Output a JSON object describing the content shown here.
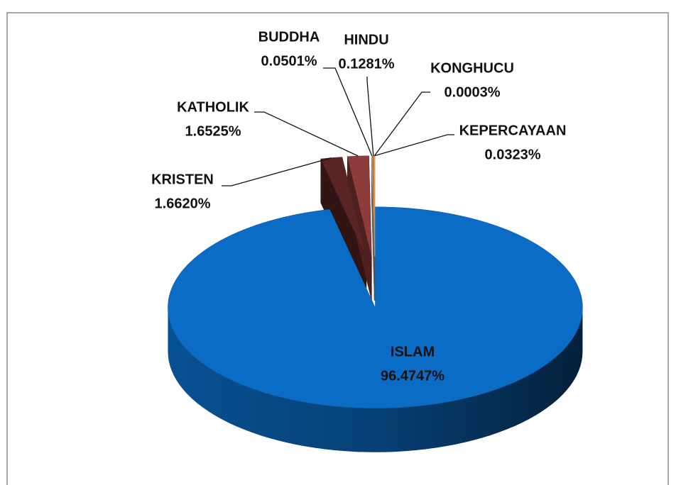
{
  "chart_data": {
    "type": "pie3d",
    "categories": [
      "ISLAM",
      "KRISTEN",
      "KATHOLIK",
      "BUDDHA",
      "HINDU",
      "KONGHUCU",
      "KEPERCAYAAN"
    ],
    "values": [
      96.4747,
      1.662,
      1.6525,
      0.0501,
      0.1281,
      0.0003,
      0.0323
    ],
    "value_labels": [
      "96.4747%",
      "1.6620%",
      "1.6525%",
      "0.0501%",
      "0.1281%",
      "0.0003%",
      "0.0323%"
    ],
    "colors": [
      "#0a6cc4",
      "#5a2424",
      "#8e3b3b",
      "#c0c0c0",
      "#e07b1f",
      "#f2e04a",
      "#d9d9d9"
    ]
  }
}
